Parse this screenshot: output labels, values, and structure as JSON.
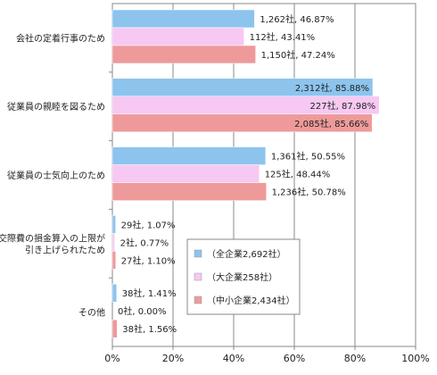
{
  "chart_data": {
    "type": "bar",
    "orientation": "horizontal",
    "categories": [
      [
        "会社の定着行事のため"
      ],
      [
        "従業員の親睦を図るため"
      ],
      [
        "従業員の士気向上のため"
      ],
      [
        "交際費の損金算入の上限が",
        "引き上げられたため"
      ],
      [
        "その他"
      ]
    ],
    "series": [
      {
        "name": "（全企業2,692社）",
        "color": "#8cc4ee",
        "values": [
          46.87,
          85.88,
          50.55,
          1.07,
          1.41
        ],
        "labels": [
          "1,262社, 46.87%",
          "2,312社, 85.88%",
          "1,361社, 50.55%",
          "29社, 1.07%",
          "38社, 1.41%"
        ]
      },
      {
        "name": "（大企業258社）",
        "color": "#f6c8f2",
        "values": [
          43.41,
          87.98,
          48.44,
          0.77,
          0.0
        ],
        "labels": [
          "112社, 43.41%",
          "227社, 87.98%",
          "125社, 48.44%",
          "2社, 0.77%",
          "0社, 0.00%"
        ]
      },
      {
        "name": "（中小企業2,434社）",
        "color": "#ee9a9a",
        "values": [
          47.24,
          85.66,
          50.78,
          1.1,
          1.56
        ],
        "labels": [
          "1,150社, 47.24%",
          "2,085社, 85.66%",
          "1,236社, 50.78%",
          "27社, 1.10%",
          "38社, 1.56%"
        ]
      }
    ],
    "xlim": [
      0,
      100
    ],
    "xticks": [
      "0%",
      "20%",
      "40%",
      "60%",
      "80%",
      "100%"
    ],
    "grid": "vertical",
    "legend_position": "lower-center",
    "title": "",
    "xlabel": "",
    "ylabel": ""
  }
}
